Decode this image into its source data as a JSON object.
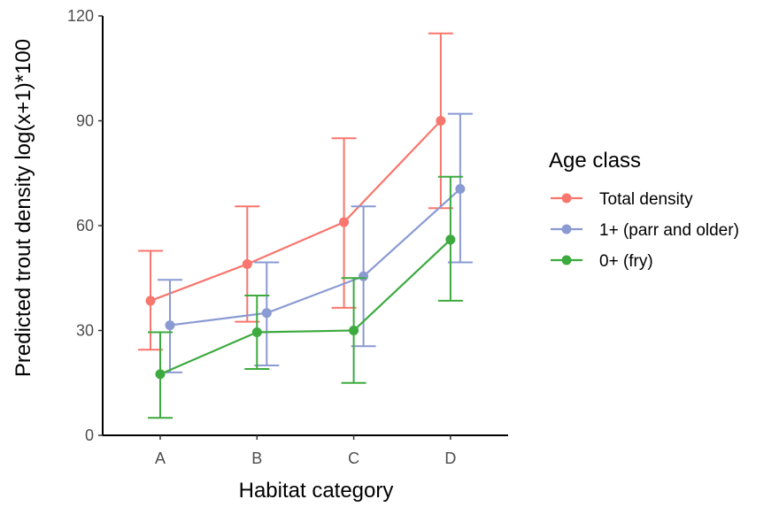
{
  "chart_data": {
    "type": "line",
    "xlabel": "Habitat category",
    "ylabel": "Predicted trout density log(x+1)*100",
    "categories": [
      "A",
      "B",
      "C",
      "D"
    ],
    "ylim": [
      0,
      120
    ],
    "yticks": [
      0,
      30,
      60,
      90,
      120
    ],
    "grid": false,
    "legend": {
      "title": "Age class",
      "position": "right"
    },
    "series": [
      {
        "name": "Total density",
        "color": "#F8766D",
        "values": [
          38.5,
          49.0,
          61.0,
          90.0
        ],
        "lower": [
          24.5,
          32.5,
          36.5,
          65.0
        ],
        "upper": [
          52.8,
          65.5,
          85.0,
          115.0
        ]
      },
      {
        "name": "1+ (parr and older)",
        "color": "#8A9AD3",
        "values": [
          31.5,
          35.0,
          45.5,
          70.5
        ],
        "lower": [
          18.0,
          20.0,
          25.5,
          49.5
        ],
        "upper": [
          44.5,
          49.5,
          65.5,
          92.0
        ]
      },
      {
        "name": "0+ (fry)",
        "color": "#3DAA3F",
        "values": [
          17.5,
          29.5,
          30.0,
          56.0
        ],
        "lower": [
          5.0,
          19.0,
          15.0,
          38.5
        ],
        "upper": [
          29.5,
          40.0,
          45.0,
          74.0
        ]
      }
    ]
  }
}
